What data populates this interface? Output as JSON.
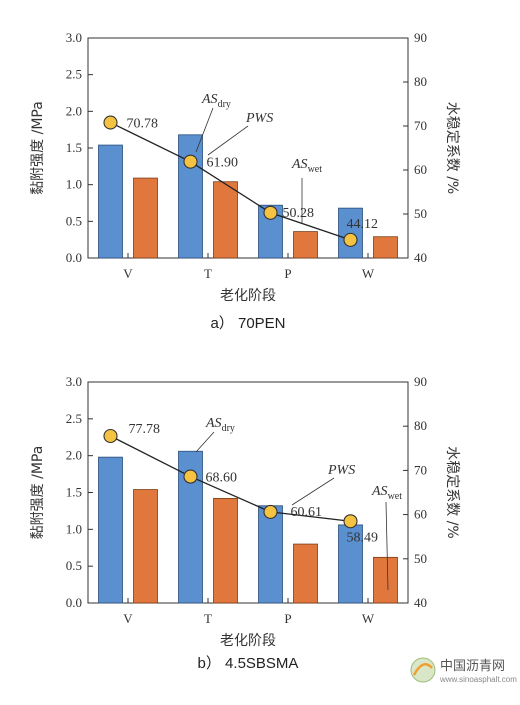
{
  "colors": {
    "bar_dry": "#5A8FD0",
    "bar_wet": "#E0783E",
    "marker": "#F5C242",
    "line": "#222222"
  },
  "chart_data": [
    {
      "type": "bar+line",
      "caption": "a） 70PEN",
      "xlabel": "老化阶段",
      "ylabel": "黏附强度 /MPa",
      "ylabel2": "水稳定系数 /%",
      "ylim": [
        0,
        3.0
      ],
      "y2lim": [
        40,
        90
      ],
      "yticks": [
        "0.0",
        "0.5",
        "1.0",
        "1.5",
        "2.0",
        "2.5",
        "3.0"
      ],
      "y2ticks": [
        "40",
        "50",
        "60",
        "70",
        "80",
        "90"
      ],
      "categories": [
        "V",
        "T",
        "P",
        "W"
      ],
      "series": [
        {
          "name": "AS_dry",
          "values": [
            1.54,
            1.68,
            0.72,
            0.68
          ]
        },
        {
          "name": "AS_wet",
          "values": [
            1.09,
            1.04,
            0.36,
            0.29
          ]
        },
        {
          "name": "PWS",
          "values": [
            70.78,
            61.9,
            50.28,
            44.12
          ]
        }
      ],
      "labels": {
        "as": "AS",
        "dry": "dry",
        "wet": "wet",
        "pws": "PWS"
      },
      "value_labels": [
        "70.78",
        "61.90",
        "50.28",
        "44.12"
      ]
    },
    {
      "type": "bar+line",
      "caption": "b） 4.5SBSMA",
      "xlabel": "老化阶段",
      "ylabel": "黏附强度 /MPa",
      "ylabel2": "水稳定系数 /%",
      "ylim": [
        0,
        3.0
      ],
      "y2lim": [
        40,
        90
      ],
      "yticks": [
        "0.0",
        "0.5",
        "1.0",
        "1.5",
        "2.0",
        "2.5",
        "3.0"
      ],
      "y2ticks": [
        "40",
        "50",
        "60",
        "70",
        "80",
        "90"
      ],
      "categories": [
        "V",
        "T",
        "P",
        "W"
      ],
      "series": [
        {
          "name": "AS_dry",
          "values": [
            1.98,
            2.06,
            1.32,
            1.06
          ]
        },
        {
          "name": "AS_wet",
          "values": [
            1.54,
            1.42,
            0.8,
            0.62
          ]
        },
        {
          "name": "PWS",
          "values": [
            77.78,
            68.6,
            60.61,
            58.49
          ]
        }
      ],
      "labels": {
        "as": "AS",
        "dry": "dry",
        "wet": "wet",
        "pws": "PWS"
      },
      "value_labels": [
        "77.78",
        "68.60",
        "60.61",
        "58.49"
      ]
    }
  ],
  "watermark": {
    "title": "中国沥青网",
    "url": "www.sinoasphalt.com"
  }
}
